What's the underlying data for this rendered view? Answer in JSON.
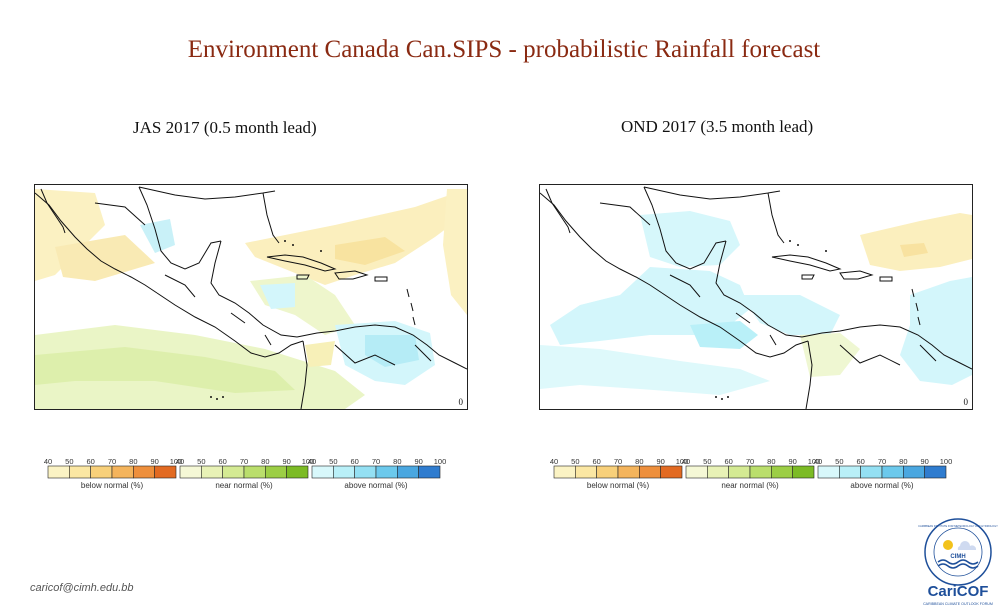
{
  "title": "Environment Canada Can.SIPS - probabilistic  Rainfall forecast",
  "panels": [
    {
      "label": "JAS 2017 (0.5 month lead)"
    },
    {
      "label": "OND 2017 (3.5 month lead)"
    }
  ],
  "legend": {
    "groups": [
      {
        "name": "below-normal",
        "caption": "below normal (%)",
        "ticks": [
          "40",
          "50",
          "60",
          "70",
          "80",
          "90",
          "100"
        ],
        "colors": [
          "#fbf3c4",
          "#fbe7a3",
          "#f8d07a",
          "#f4b45c",
          "#ee8f3c",
          "#e26a22"
        ]
      },
      {
        "name": "near-normal",
        "caption": "near normal (%)",
        "ticks": [
          "40",
          "50",
          "60",
          "70",
          "80",
          "90",
          "100"
        ],
        "colors": [
          "#f5f8d6",
          "#e8f2b6",
          "#d4ea93",
          "#bade6c",
          "#9cce45",
          "#7cbb25"
        ]
      },
      {
        "name": "above-normal",
        "caption": "above normal (%)",
        "ticks": [
          "40",
          "50",
          "60",
          "70",
          "80",
          "90",
          "100"
        ],
        "colors": [
          "#d8f8fb",
          "#b9f0f8",
          "#94e0f3",
          "#6cc9ec",
          "#4aa7e0",
          "#2f7ccf"
        ]
      }
    ]
  },
  "map_marks": {
    "axis_tick": "0",
    "corner_mark": "0"
  },
  "footer": {
    "email": "caricof@cimh.edu.bb"
  },
  "logo": {
    "top_text": "CARIBBEAN INSTITUTE FOR METEOROLOGY AND HYDROLOGY",
    "acronym": "CIMH",
    "brand": "CariCOF",
    "tagline": "CARIBBEAN CLIMATE OUTLOOK FORUM"
  },
  "colors": {
    "title": "#8a2a12",
    "brand_blue": "#1e4f9a",
    "brand_orange": "#e87722"
  }
}
